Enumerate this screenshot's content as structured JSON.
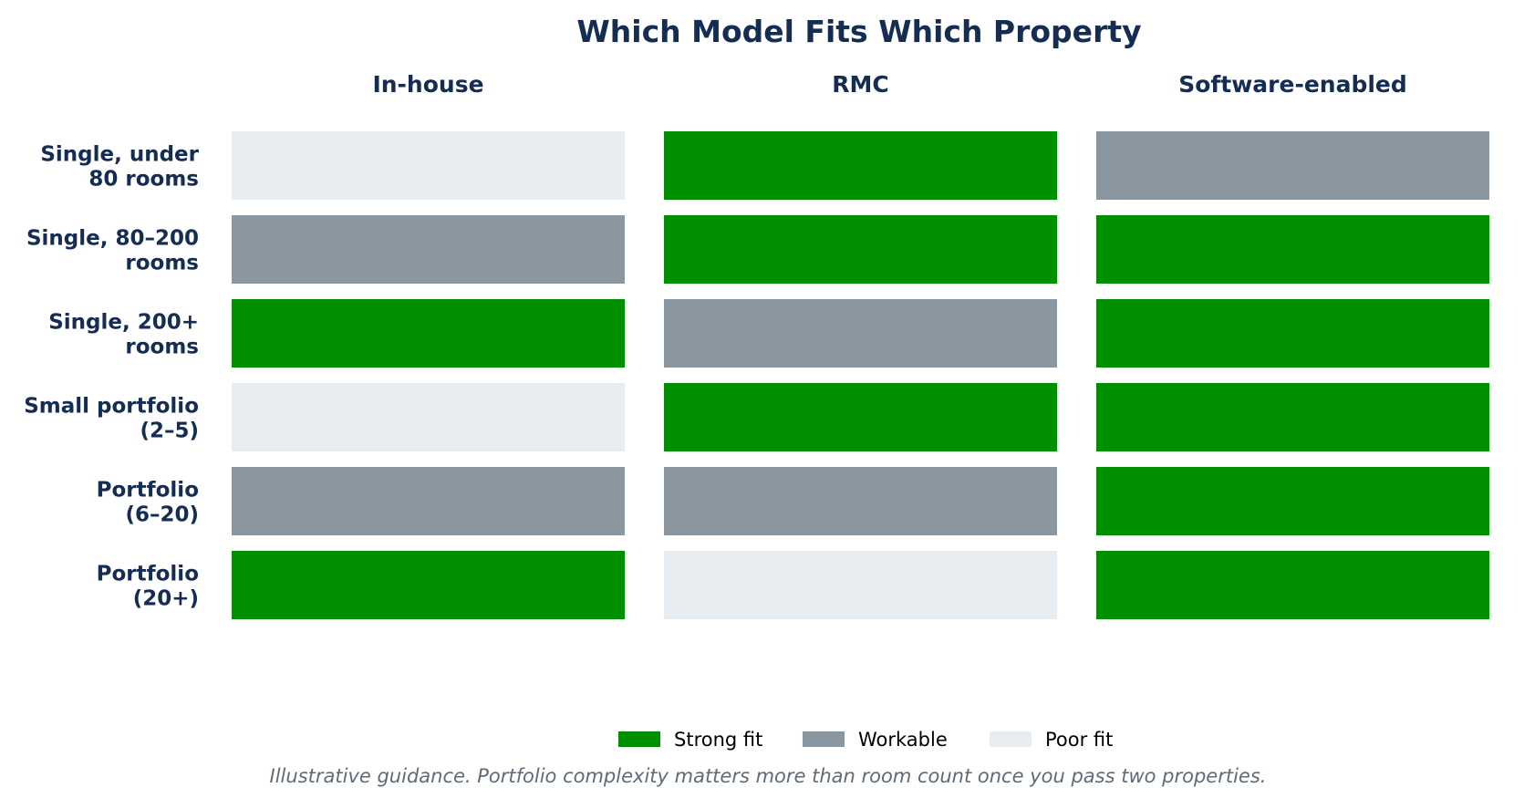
{
  "chart_data": {
    "type": "heatmap",
    "title": "Which Model Fits Which Property",
    "columns": [
      "In-house",
      "RMC",
      "Software-enabled"
    ],
    "rows": [
      [
        "Single, under",
        "80 rooms"
      ],
      [
        "Single, 80–200",
        "rooms"
      ],
      [
        "Single, 200+",
        "rooms"
      ],
      [
        "Small portfolio",
        "(2–5)"
      ],
      [
        "Portfolio",
        "(6–20)"
      ],
      [
        "Portfolio",
        "(20+)"
      ]
    ],
    "levels": {
      "strong": {
        "label": "Strong fit",
        "color": "#008f00"
      },
      "workable": {
        "label": "Workable",
        "color": "#8a97a1"
      },
      "poor": {
        "label": "Poor fit",
        "color": "#e8edf1"
      }
    },
    "legend_order": [
      "strong",
      "workable",
      "poor"
    ],
    "legend_placement": "bottom-center",
    "cells": [
      [
        "poor",
        "strong",
        "workable"
      ],
      [
        "workable",
        "strong",
        "strong"
      ],
      [
        "strong",
        "workable",
        "strong"
      ],
      [
        "poor",
        "strong",
        "strong"
      ],
      [
        "workable",
        "workable",
        "strong"
      ],
      [
        "strong",
        "poor",
        "strong"
      ]
    ],
    "footnote": "Illustrative guidance. Portfolio complexity matters more than room count once you pass two properties."
  }
}
